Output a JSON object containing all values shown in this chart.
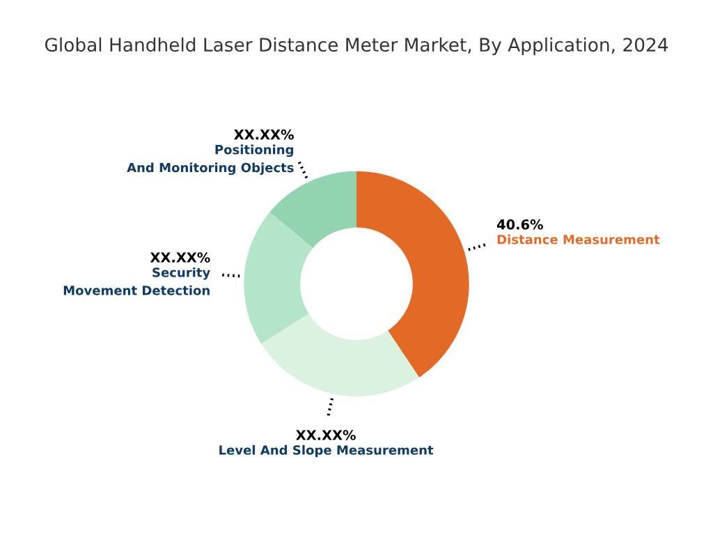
{
  "chart_data": {
    "type": "donut",
    "title": "Global Handheld Laser Distance Meter Market, By Application, 2024",
    "categories": [
      "Distance Measurement",
      "Level And Slope Measurement",
      "Security Movement Detection",
      "Positioning And Monitoring Objects"
    ],
    "values": [
      40.6,
      25.5,
      19.9,
      14.0
    ],
    "value_labels": [
      "40.6%",
      "XX.XX%",
      "XX.XX%",
      "XX.XX%"
    ],
    "colors": [
      "#e36a26",
      "#daf2df",
      "#b5e5c8",
      "#93d4b0"
    ]
  }
}
